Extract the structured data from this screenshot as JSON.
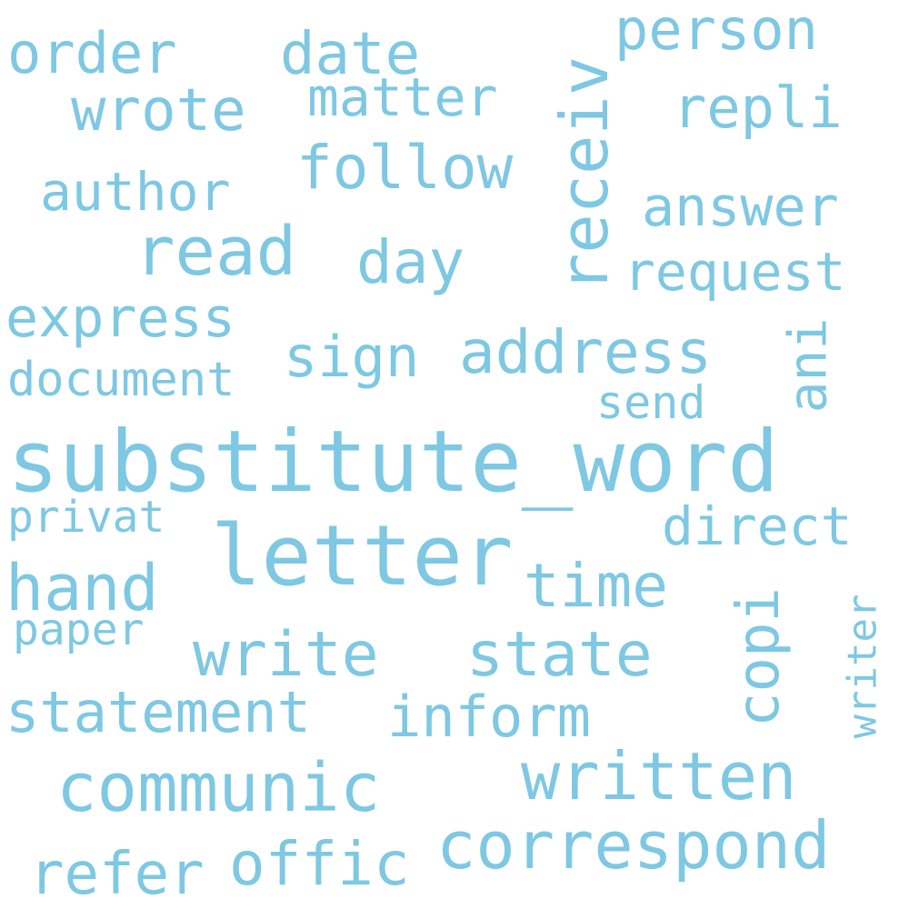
{
  "color": "#7ec8e3",
  "words": [
    "substitute_word",
    "letter",
    "receiv",
    "written",
    "communic",
    "correspond",
    "write",
    "state",
    "read",
    "address",
    "inform",
    "statement",
    "hand",
    "follow",
    "wrote",
    "time",
    "offic",
    "refer",
    "copi",
    "date",
    "order",
    "person",
    "request",
    "answer",
    "day",
    "express",
    "matter",
    "author",
    "direct",
    "sign",
    "repli",
    "document",
    "writer",
    "ani",
    "send",
    "privat",
    "paper"
  ]
}
